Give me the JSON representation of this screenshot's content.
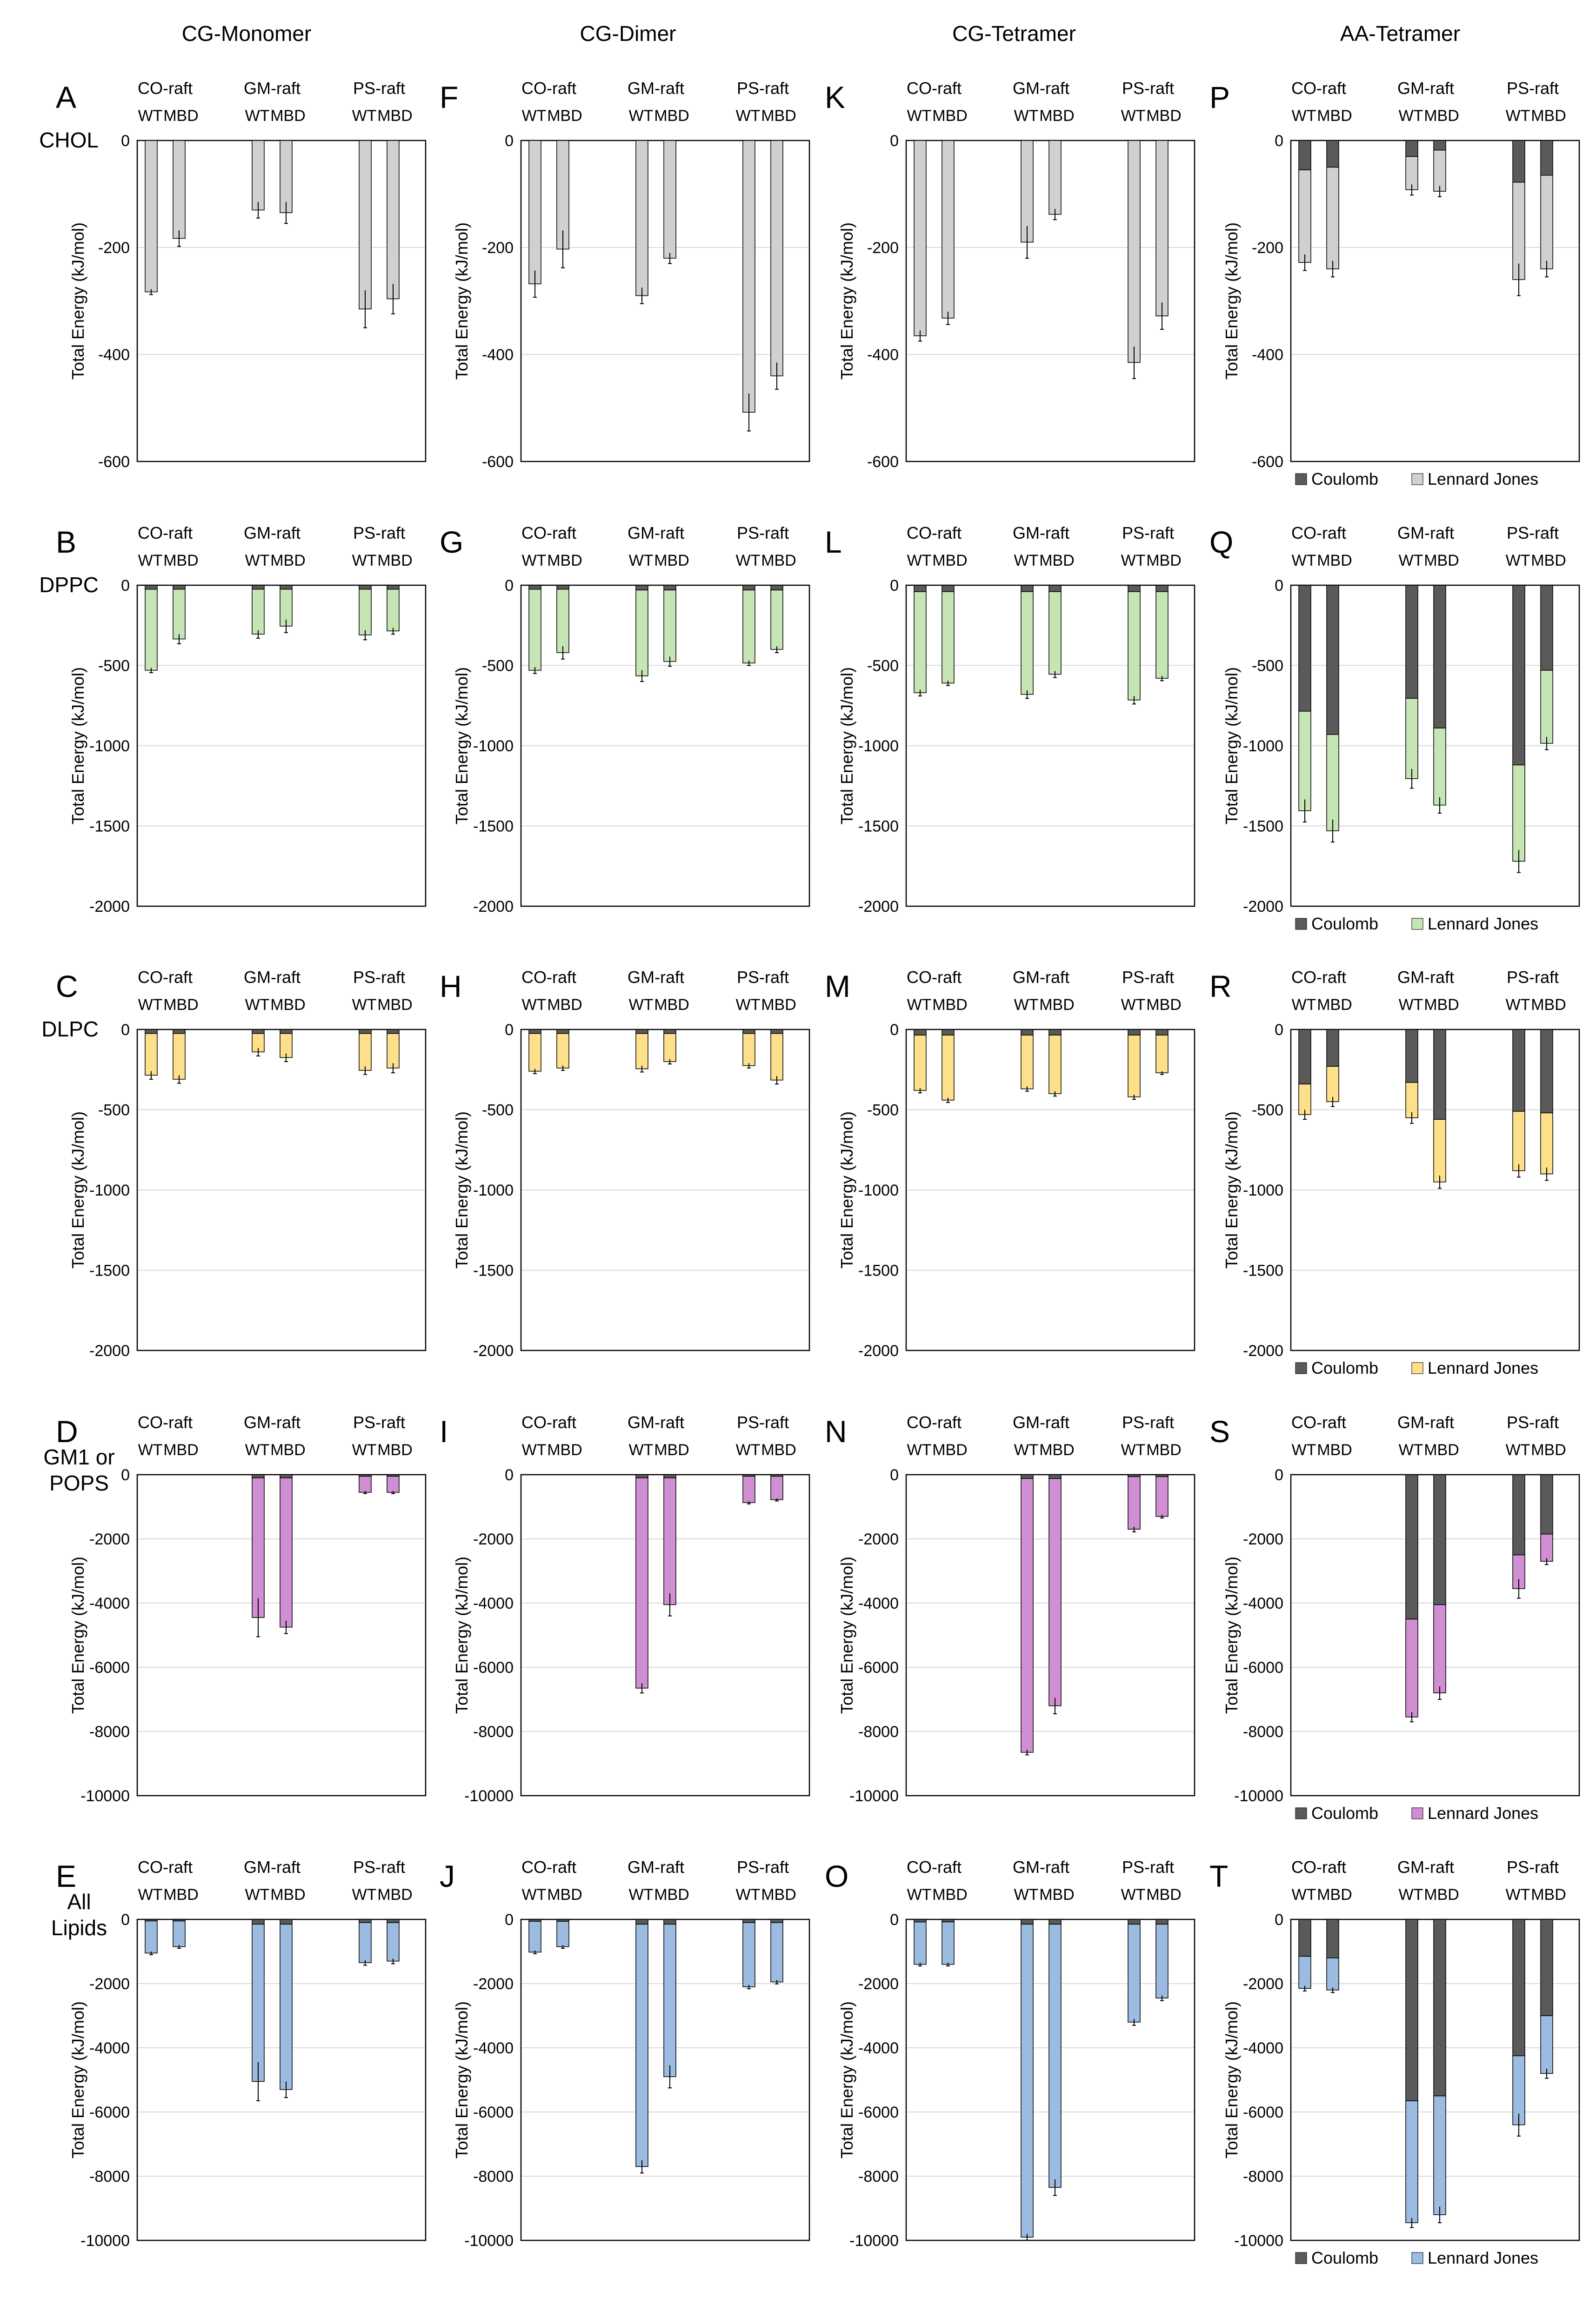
{
  "column_titles": [
    "CG-Monomer",
    "CG-Dimer",
    "CG-Tetramer",
    "AA-Tetramer"
  ],
  "row_labels": [
    {
      "text": "CHOL",
      "color": "#000000"
    },
    {
      "text": "DPPC",
      "color": "#22b14c"
    },
    {
      "text": "DLPC",
      "color": "#f5c518"
    },
    {
      "lines": [
        "GM1 or",
        "POPS"
      ],
      "color": "#7a3fa6"
    },
    {
      "lines": [
        "All",
        "Lipids"
      ],
      "color": "#1f7ac9"
    }
  ],
  "panel_letters": [
    [
      "A",
      "F",
      "K",
      "P"
    ],
    [
      "B",
      "G",
      "L",
      "Q"
    ],
    [
      "C",
      "H",
      "M",
      "R"
    ],
    [
      "D",
      "I",
      "N",
      "S"
    ],
    [
      "E",
      "J",
      "O",
      "T"
    ]
  ],
  "groups": [
    "CO-raft",
    "GM-raft",
    "PS-raft"
  ],
  "bar_labels": [
    "WT",
    "MBD"
  ],
  "ylabel": "Total Energy (kJ/mol)",
  "legend": {
    "coulomb": "Coulomb",
    "lj": "Lennard Jones"
  },
  "colors": {
    "coulomb": "#5a5a5a",
    "CHOL": "#d0d0d0",
    "DPPC": "#c6e5b5",
    "DLPC": "#ffe08a",
    "GM1 or POPS": "#d08ed3",
    "All Lipids": "#9bbbe0"
  },
  "chart_data": [
    {
      "panel": "A",
      "type": "bar",
      "row": "CHOL",
      "column": "CG-Monomer",
      "ylim": [
        -600,
        0
      ],
      "yticks": [
        0,
        -200,
        -400,
        -600
      ],
      "coulomb": [
        0,
        0,
        0,
        0,
        0,
        0
      ],
      "total": [
        -283,
        -183,
        -130,
        -135,
        -315,
        -296
      ],
      "error": [
        5,
        15,
        15,
        20,
        35,
        28
      ]
    },
    {
      "panel": "F",
      "type": "bar",
      "row": "CHOL",
      "column": "CG-Dimer",
      "ylim": [
        -600,
        0
      ],
      "yticks": [
        0,
        -200,
        -400,
        -600
      ],
      "coulomb": [
        0,
        0,
        0,
        0,
        0,
        0
      ],
      "total": [
        -268,
        -203,
        -290,
        -220,
        -508,
        -440
      ],
      "error": [
        25,
        35,
        15,
        10,
        35,
        25
      ]
    },
    {
      "panel": "K",
      "type": "bar",
      "row": "CHOL",
      "column": "CG-Tetramer",
      "ylim": [
        -600,
        0
      ],
      "yticks": [
        0,
        -200,
        -400,
        -600
      ],
      "coulomb": [
        0,
        0,
        0,
        0,
        0,
        0
      ],
      "total": [
        -365,
        -332,
        -190,
        -138,
        -415,
        -328
      ],
      "error": [
        10,
        12,
        30,
        10,
        30,
        25
      ]
    },
    {
      "panel": "P",
      "type": "bar",
      "row": "CHOL",
      "column": "AA-Tetramer",
      "ylim": [
        -600,
        0
      ],
      "yticks": [
        0,
        -200,
        -400,
        -600
      ],
      "coulomb": [
        -55,
        -50,
        -30,
        -18,
        -78,
        -65
      ],
      "total": [
        -228,
        -240,
        -92,
        -95,
        -260,
        -240
      ],
      "error": [
        15,
        15,
        10,
        10,
        30,
        15
      ],
      "legend": true
    },
    {
      "panel": "B",
      "type": "bar",
      "row": "DPPC",
      "column": "CG-Monomer",
      "ylim": [
        -2000,
        0
      ],
      "yticks": [
        0,
        -500,
        -1000,
        -1500,
        -2000
      ],
      "coulomb": [
        -25,
        -25,
        -25,
        -25,
        -25,
        -25
      ],
      "total": [
        -530,
        -335,
        -305,
        -255,
        -310,
        -285
      ],
      "error": [
        15,
        30,
        25,
        40,
        30,
        20
      ]
    },
    {
      "panel": "G",
      "type": "bar",
      "row": "DPPC",
      "column": "CG-Dimer",
      "ylim": [
        -2000,
        0
      ],
      "yticks": [
        0,
        -500,
        -1000,
        -1500,
        -2000
      ],
      "coulomb": [
        -25,
        -25,
        -30,
        -30,
        -30,
        -30
      ],
      "total": [
        -530,
        -420,
        -565,
        -475,
        -485,
        -400
      ],
      "error": [
        20,
        40,
        35,
        30,
        15,
        20
      ]
    },
    {
      "panel": "L",
      "type": "bar",
      "row": "DPPC",
      "column": "CG-Tetramer",
      "ylim": [
        -2000,
        0
      ],
      "yticks": [
        0,
        -500,
        -1000,
        -1500,
        -2000
      ],
      "coulomb": [
        -40,
        -40,
        -40,
        -40,
        -40,
        -40
      ],
      "total": [
        -670,
        -610,
        -680,
        -555,
        -715,
        -580
      ],
      "error": [
        20,
        15,
        25,
        20,
        25,
        15
      ]
    },
    {
      "panel": "Q",
      "type": "bar",
      "row": "DPPC",
      "column": "AA-Tetramer",
      "ylim": [
        -2000,
        0
      ],
      "yticks": [
        0,
        -500,
        -1000,
        -1500,
        -2000
      ],
      "coulomb": [
        -785,
        -930,
        -705,
        -890,
        -1120,
        -530
      ],
      "total": [
        -1405,
        -1530,
        -1205,
        -1370,
        -1720,
        -985
      ],
      "error": [
        70,
        70,
        60,
        50,
        70,
        40
      ],
      "legend": true
    },
    {
      "panel": "C",
      "type": "bar",
      "row": "DLPC",
      "column": "CG-Monomer",
      "ylim": [
        -2000,
        0
      ],
      "yticks": [
        0,
        -500,
        -1000,
        -1500,
        -2000
      ],
      "coulomb": [
        -25,
        -25,
        -25,
        -25,
        -25,
        -25
      ],
      "total": [
        -285,
        -310,
        -140,
        -175,
        -255,
        -240
      ],
      "error": [
        25,
        25,
        25,
        25,
        25,
        30
      ]
    },
    {
      "panel": "H",
      "type": "bar",
      "row": "DLPC",
      "column": "CG-Dimer",
      "ylim": [
        -2000,
        0
      ],
      "yticks": [
        0,
        -500,
        -1000,
        -1500,
        -2000
      ],
      "coulomb": [
        -25,
        -25,
        -25,
        -25,
        -25,
        -25
      ],
      "total": [
        -260,
        -240,
        -245,
        -200,
        -225,
        -315
      ],
      "error": [
        15,
        15,
        20,
        15,
        15,
        25
      ]
    },
    {
      "panel": "M",
      "type": "bar",
      "row": "DLPC",
      "column": "CG-Tetramer",
      "ylim": [
        -2000,
        0
      ],
      "yticks": [
        0,
        -500,
        -1000,
        -1500,
        -2000
      ],
      "coulomb": [
        -35,
        -35,
        -35,
        -35,
        -35,
        -35
      ],
      "total": [
        -380,
        -440,
        -370,
        -400,
        -420,
        -270
      ],
      "error": [
        15,
        15,
        15,
        15,
        15,
        10
      ]
    },
    {
      "panel": "R",
      "type": "bar",
      "row": "DLPC",
      "column": "AA-Tetramer",
      "ylim": [
        -2000,
        0
      ],
      "yticks": [
        0,
        -500,
        -1000,
        -1500,
        -2000
      ],
      "coulomb": [
        -340,
        -230,
        -330,
        -560,
        -510,
        -520
      ],
      "total": [
        -530,
        -450,
        -550,
        -950,
        -880,
        -900
      ],
      "error": [
        30,
        30,
        35,
        40,
        40,
        40
      ],
      "legend": true
    },
    {
      "panel": "D",
      "type": "bar",
      "row": "GM1 or POPS",
      "column": "CG-Monomer",
      "ylim": [
        -10000,
        0
      ],
      "yticks": [
        0,
        -2000,
        -4000,
        -6000,
        -8000,
        -10000
      ],
      "coulomb": [
        0,
        0,
        -100,
        -100,
        -50,
        -50
      ],
      "total": [
        0,
        0,
        -4450,
        -4750,
        -550,
        -550
      ],
      "error": [
        0,
        0,
        600,
        200,
        40,
        40
      ]
    },
    {
      "panel": "I",
      "type": "bar",
      "row": "GM1 or POPS",
      "column": "CG-Dimer",
      "ylim": [
        -10000,
        0
      ],
      "yticks": [
        0,
        -2000,
        -4000,
        -6000,
        -8000,
        -10000
      ],
      "coulomb": [
        0,
        0,
        -100,
        -100,
        -50,
        -50
      ],
      "total": [
        0,
        0,
        -6650,
        -4050,
        -870,
        -780
      ],
      "error": [
        0,
        0,
        150,
        350,
        40,
        40
      ]
    },
    {
      "panel": "N",
      "type": "bar",
      "row": "GM1 or POPS",
      "column": "CG-Tetramer",
      "ylim": [
        -10000,
        0
      ],
      "yticks": [
        0,
        -2000,
        -4000,
        -6000,
        -8000,
        -10000
      ],
      "coulomb": [
        0,
        0,
        -120,
        -120,
        -60,
        -60
      ],
      "total": [
        0,
        0,
        -8650,
        -7200,
        -1700,
        -1300
      ],
      "error": [
        0,
        0,
        80,
        250,
        80,
        50
      ]
    },
    {
      "panel": "S",
      "type": "bar",
      "row": "GM1 or POPS",
      "column": "AA-Tetramer",
      "ylim": [
        -10000,
        0
      ],
      "yticks": [
        0,
        -2000,
        -4000,
        -6000,
        -8000,
        -10000
      ],
      "coulomb": [
        0,
        0,
        -4500,
        -4050,
        -2500,
        -1850
      ],
      "total": [
        0,
        0,
        -7550,
        -6800,
        -3550,
        -2700
      ],
      "error": [
        0,
        0,
        150,
        200,
        300,
        100
      ],
      "legend": true
    },
    {
      "panel": "E",
      "type": "bar",
      "row": "All Lipids",
      "column": "CG-Monomer",
      "ylim": [
        -10000,
        0
      ],
      "yticks": [
        0,
        -2000,
        -4000,
        -6000,
        -8000,
        -10000
      ],
      "coulomb": [
        -50,
        -50,
        -150,
        -150,
        -100,
        -100
      ],
      "total": [
        -1050,
        -850,
        -5050,
        -5300,
        -1350,
        -1300
      ],
      "error": [
        50,
        50,
        600,
        250,
        80,
        80
      ]
    },
    {
      "panel": "J",
      "type": "bar",
      "row": "All Lipids",
      "column": "CG-Dimer",
      "ylim": [
        -10000,
        0
      ],
      "yticks": [
        0,
        -2000,
        -4000,
        -6000,
        -8000,
        -10000
      ],
      "coulomb": [
        -60,
        -60,
        -150,
        -150,
        -100,
        -100
      ],
      "total": [
        -1020,
        -850,
        -7700,
        -4900,
        -2100,
        -1950
      ],
      "error": [
        50,
        50,
        200,
        350,
        60,
        60
      ]
    },
    {
      "panel": "O",
      "type": "bar",
      "row": "All Lipids",
      "column": "CG-Tetramer",
      "ylim": [
        -10000,
        0
      ],
      "yticks": [
        0,
        -2000,
        -4000,
        -6000,
        -8000,
        -10000
      ],
      "coulomb": [
        -80,
        -80,
        -150,
        -150,
        -150,
        -150
      ],
      "total": [
        -1400,
        -1400,
        -9900,
        -8350,
        -3200,
        -2450
      ],
      "error": [
        50,
        50,
        100,
        250,
        100,
        80
      ]
    },
    {
      "panel": "T",
      "type": "bar",
      "row": "All Lipids",
      "column": "AA-Tetramer",
      "ylim": [
        -10000,
        0
      ],
      "yticks": [
        0,
        -2000,
        -4000,
        -6000,
        -8000,
        -10000
      ],
      "coulomb": [
        -1150,
        -1200,
        -5650,
        -5500,
        -4250,
        -3000
      ],
      "total": [
        -2150,
        -2200,
        -9450,
        -9200,
        -6400,
        -4800
      ],
      "error": [
        80,
        80,
        150,
        250,
        350,
        150
      ],
      "legend": true
    }
  ]
}
